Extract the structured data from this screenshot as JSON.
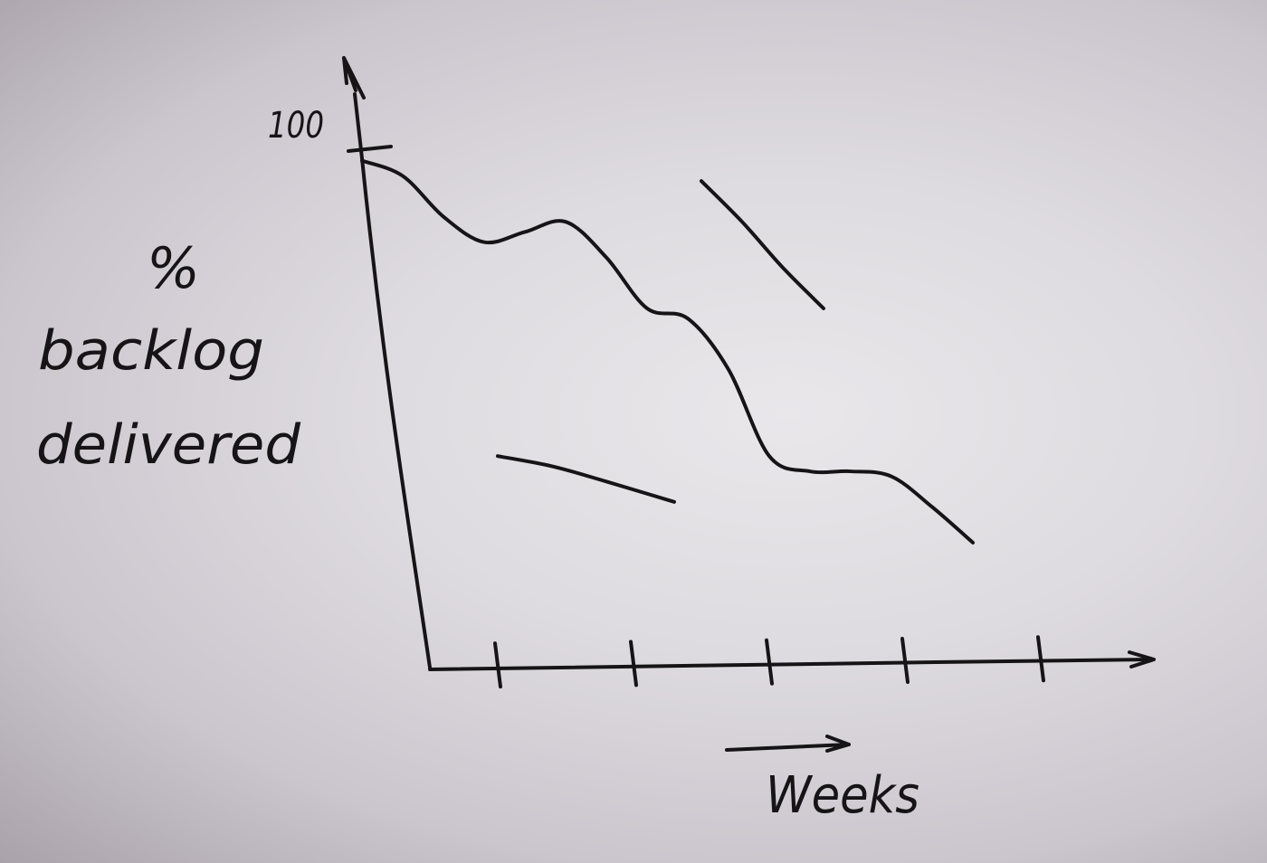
{
  "chart_data": {
    "type": "line",
    "title": "",
    "xlabel": "Weeks",
    "ylabel_lines": [
      "%",
      "backlog",
      "delivered"
    ],
    "y_tick_labels": [
      "100"
    ],
    "ylim": [
      0,
      100
    ],
    "xlim": [
      0,
      5
    ],
    "x_ticks": [
      1,
      2,
      3,
      4,
      5
    ],
    "grid": false,
    "series": [
      {
        "x": [
          0,
          0.3,
          0.6,
          0.9,
          1.2,
          1.5,
          1.8,
          2.1,
          2.4,
          2.7,
          3.0,
          3.3,
          3.6,
          3.9,
          4.2,
          4.5
        ],
        "y": [
          99,
          96,
          88,
          83,
          85,
          87,
          80,
          70,
          68,
          58,
          41,
          38,
          38,
          37,
          31,
          24
        ]
      },
      {
        "x": [
          1.0,
          1.4,
          1.8,
          2.3
        ],
        "y": [
          41,
          39,
          36,
          32
        ]
      },
      {
        "x": [
          2.5,
          2.8,
          3.1,
          3.4
        ],
        "y": [
          95,
          87,
          78,
          70
        ]
      }
    ]
  }
}
